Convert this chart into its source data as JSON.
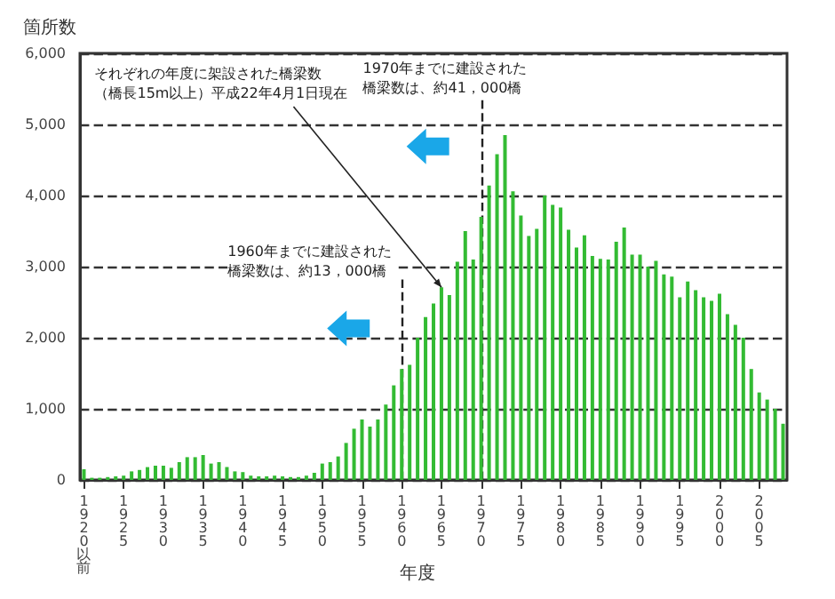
{
  "chart_data": {
    "type": "bar",
    "ylabel": "箇所数",
    "xlabel": "年度",
    "categories": [
      "1920以前",
      null,
      null,
      null,
      null,
      "1925",
      null,
      null,
      null,
      null,
      "1930",
      null,
      null,
      null,
      null,
      "1935",
      null,
      null,
      null,
      null,
      "1940",
      null,
      null,
      null,
      null,
      "1945",
      null,
      null,
      null,
      null,
      "1950",
      null,
      null,
      null,
      null,
      "1955",
      null,
      null,
      null,
      null,
      "1960",
      null,
      null,
      null,
      null,
      "1965",
      null,
      null,
      null,
      null,
      "1970",
      null,
      null,
      null,
      null,
      "1975",
      null,
      null,
      null,
      null,
      "1980",
      null,
      null,
      null,
      null,
      "1985",
      null,
      null,
      null,
      null,
      "1990",
      null,
      null,
      null,
      null,
      "1995",
      null,
      null,
      null,
      null,
      "2000",
      null,
      null,
      null,
      null,
      "2005",
      null,
      null,
      null
    ],
    "values": [
      150,
      30,
      30,
      40,
      50,
      60,
      120,
      140,
      180,
      200,
      200,
      170,
      250,
      320,
      320,
      350,
      230,
      250,
      180,
      120,
      110,
      60,
      50,
      50,
      60,
      50,
      40,
      40,
      60,
      100,
      230,
      250,
      330,
      520,
      720,
      850,
      750,
      850,
      1060,
      1330,
      1560,
      1620,
      2000,
      2290,
      2480,
      2710,
      2600,
      3070,
      3500,
      3100,
      3700,
      4140,
      4580,
      4850,
      4060,
      3720,
      3430,
      3530,
      4000,
      3870,
      3830,
      3520,
      3270,
      3440,
      3150,
      3110,
      3100,
      3350,
      3550,
      3170,
      3170,
      3000,
      3080,
      2890,
      2860,
      2570,
      2790,
      2670,
      2570,
      2520,
      2620,
      2330,
      2180,
      2000,
      1560,
      1230,
      1130,
      1000,
      790
    ],
    "color": "#33bb33",
    "ylim": [
      0,
      6000
    ],
    "yticks": [
      {
        "value": 0,
        "label": "0"
      },
      {
        "value": 1000,
        "label": "1,000"
      },
      {
        "value": 2000,
        "label": "2,000"
      },
      {
        "value": 3000,
        "label": "3,000"
      },
      {
        "value": 4000,
        "label": "4,000"
      },
      {
        "value": 5000,
        "label": "5,000"
      },
      {
        "value": 6000,
        "label": "6,000"
      }
    ],
    "grid": "y",
    "ref_lines": [
      {
        "axis": "x",
        "value": "1960",
        "label": "1960年までに建設された橋梁数は、約13，000橋",
        "line_style": "dashed"
      },
      {
        "axis": "x",
        "value": "1970",
        "label": "1970年までに建設された橋梁数は、約41，000橋",
        "line_style": "dashed"
      }
    ],
    "annotations": [
      {
        "text": "それぞれの年度に架設された橋梁数（橋長15m以上）平成22年4月1日現在",
        "x": "1965",
        "y": 2710
      }
    ]
  }
}
